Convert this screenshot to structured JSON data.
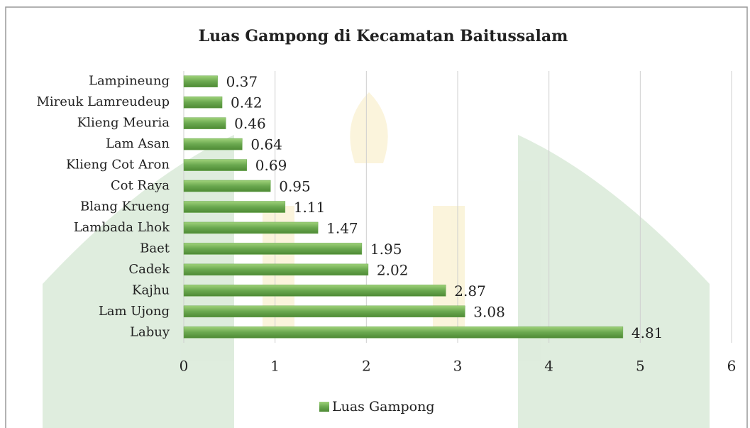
{
  "chart_data": {
    "type": "bar",
    "title": "Luas Gampong di Kecamatan Baitussalam",
    "categories": [
      "Lampineung",
      "Mireuk Lamreudeup",
      "Klieng Meuria",
      "Lam Asan",
      "Klieng Cot Aron",
      "Cot Raya",
      "Blang Krueng",
      "Lambada Lhok",
      "Baet",
      "Cadek",
      "Kajhu",
      "Lam Ujong",
      "Labuy"
    ],
    "series": [
      {
        "name": "Luas Gampong",
        "color": "#6aa84f",
        "values": [
          0.37,
          0.42,
          0.46,
          0.64,
          0.69,
          0.95,
          1.11,
          1.47,
          1.95,
          2.02,
          2.87,
          3.08,
          4.81
        ]
      }
    ],
    "xlim": [
      0,
      6
    ],
    "xticks": [
      0,
      1,
      2,
      3,
      4,
      5,
      6
    ],
    "grid": true
  }
}
